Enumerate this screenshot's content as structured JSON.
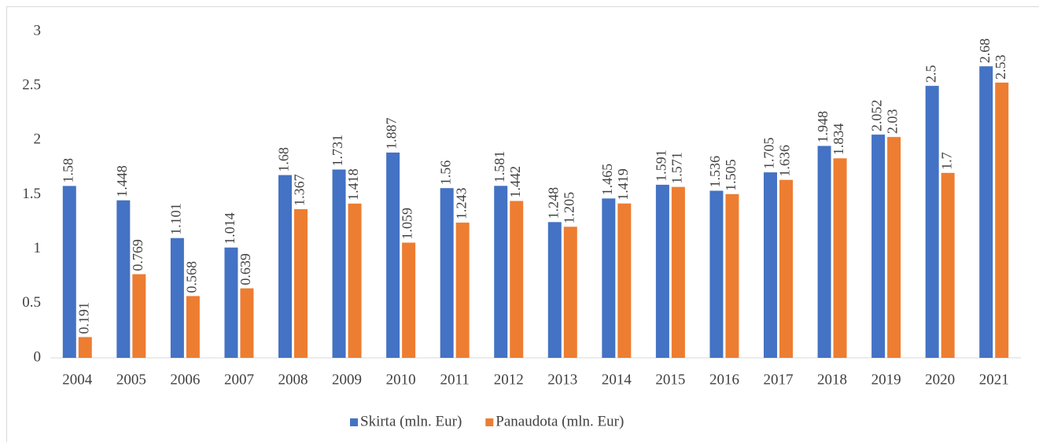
{
  "chart_data": {
    "type": "bar",
    "categories": [
      "2004",
      "2005",
      "2006",
      "2007",
      "2008",
      "2009",
      "2010",
      "2011",
      "2012",
      "2013",
      "2014",
      "2015",
      "2016",
      "2017",
      "2018",
      "2019",
      "2020",
      "2021"
    ],
    "series": [
      {
        "name": "Skirta (mln. Eur)",
        "color": "#4472c4",
        "values": [
          1.58,
          1.448,
          1.101,
          1.014,
          1.68,
          1.731,
          1.887,
          1.56,
          1.581,
          1.248,
          1.465,
          1.591,
          1.536,
          1.705,
          1.948,
          2.052,
          2.5,
          2.68
        ]
      },
      {
        "name": "Panaudota (mln. Eur)",
        "color": "#ed7d31",
        "values": [
          0.191,
          0.769,
          0.568,
          0.639,
          1.367,
          1.418,
          1.059,
          1.243,
          1.442,
          1.205,
          1.419,
          1.571,
          1.505,
          1.636,
          1.834,
          2.03,
          1.7,
          2.53
        ]
      }
    ],
    "ylim": [
      0,
      3
    ],
    "yticks": [
      0,
      0.5,
      1,
      1.5,
      2,
      2.5,
      3
    ],
    "grid": false,
    "legend": "bottom"
  }
}
